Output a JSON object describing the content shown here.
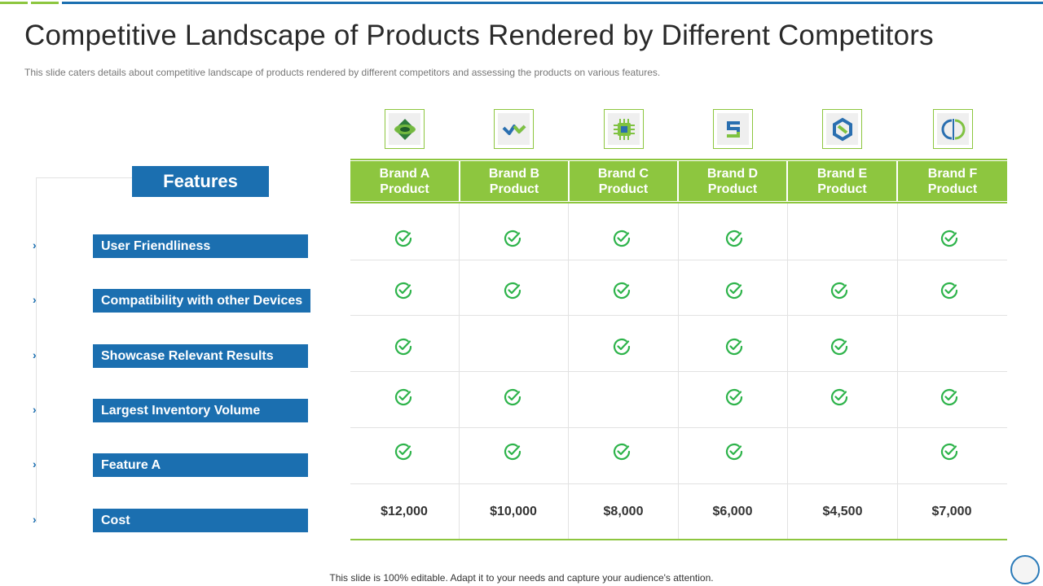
{
  "slide": {
    "title": "Competitive Landscape of Products Rendered by Different Competitors",
    "subtitle": "This slide caters details about competitive landscape of products rendered  by different competitors and assessing the products on various features.",
    "footer": "This slide is 100% editable. Adapt it to your needs and capture your audience's attention."
  },
  "features": {
    "header": "Features",
    "items": [
      {
        "label": "User Friendliness"
      },
      {
        "label": "Compatibility  with other Devices"
      },
      {
        "label": "Showcase Relevant Results"
      },
      {
        "label": "Largest Inventory Volume"
      },
      {
        "label": "Feature A"
      },
      {
        "label": "Cost"
      }
    ]
  },
  "brands": [
    {
      "line1": "Brand A",
      "line2": "Product",
      "icon": "diamond-leaf-icon"
    },
    {
      "line1": "Brand B",
      "line2": "Product",
      "icon": "zigzag-arrow-icon"
    },
    {
      "line1": "Brand C",
      "line2": "Product",
      "icon": "chip-icon"
    },
    {
      "line1": "Brand D",
      "line2": "Product",
      "icon": "s-link-icon"
    },
    {
      "line1": "Brand E",
      "line2": "Product",
      "icon": "hexagon-link-icon"
    },
    {
      "line1": "Brand F",
      "line2": "Product",
      "icon": "circular-leaf-icon"
    }
  ],
  "matrix": [
    [
      true,
      true,
      true,
      true,
      false,
      true
    ],
    [
      true,
      true,
      true,
      true,
      true,
      true
    ],
    [
      true,
      false,
      true,
      true,
      true,
      false
    ],
    [
      true,
      true,
      false,
      true,
      true,
      true
    ],
    [
      true,
      true,
      true,
      true,
      false,
      true
    ]
  ],
  "prices": [
    "$12,000",
    "$10,000",
    "$8,000",
    "$6,000",
    "$4,500",
    "$7,000"
  ],
  "colors": {
    "accent_blue": "#1b6fb0",
    "accent_green": "#8dc63f",
    "check_green": "#2db34a"
  }
}
